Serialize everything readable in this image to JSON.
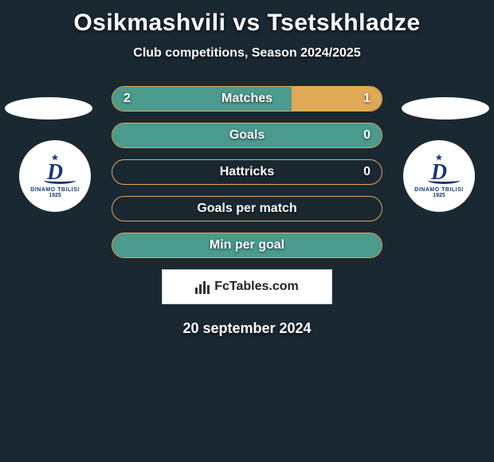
{
  "header": {
    "title": "Osikmashvili vs Tsetskhladze",
    "subtitle": "Club competitions, Season 2024/2025"
  },
  "colors": {
    "left_fill": "#4a9b8e",
    "right_fill": "#e0a955",
    "bar_border": "#e0a955",
    "background": "#1a2832"
  },
  "bars": [
    {
      "label": "Matches",
      "left": "2",
      "right": "1",
      "left_pct": 66.7,
      "right_pct": 33.3,
      "show_values": true
    },
    {
      "label": "Goals",
      "left": "",
      "right": "0",
      "left_pct": 100,
      "right_pct": 0,
      "show_left": false,
      "show_right": true
    },
    {
      "label": "Hattricks",
      "left": "",
      "right": "0",
      "left_pct": 0,
      "right_pct": 0,
      "show_left": false,
      "show_right": true
    },
    {
      "label": "Goals per match",
      "left": "",
      "right": "",
      "left_pct": 0,
      "right_pct": 0,
      "show_values": false
    },
    {
      "label": "Min per goal",
      "left": "",
      "right": "",
      "left_pct": 100,
      "right_pct": 0,
      "show_values": false
    }
  ],
  "badge": {
    "line1": "DINAMO TBILISI",
    "line2": "1925"
  },
  "attribution": "FcTables.com",
  "date": "20 september 2024"
}
